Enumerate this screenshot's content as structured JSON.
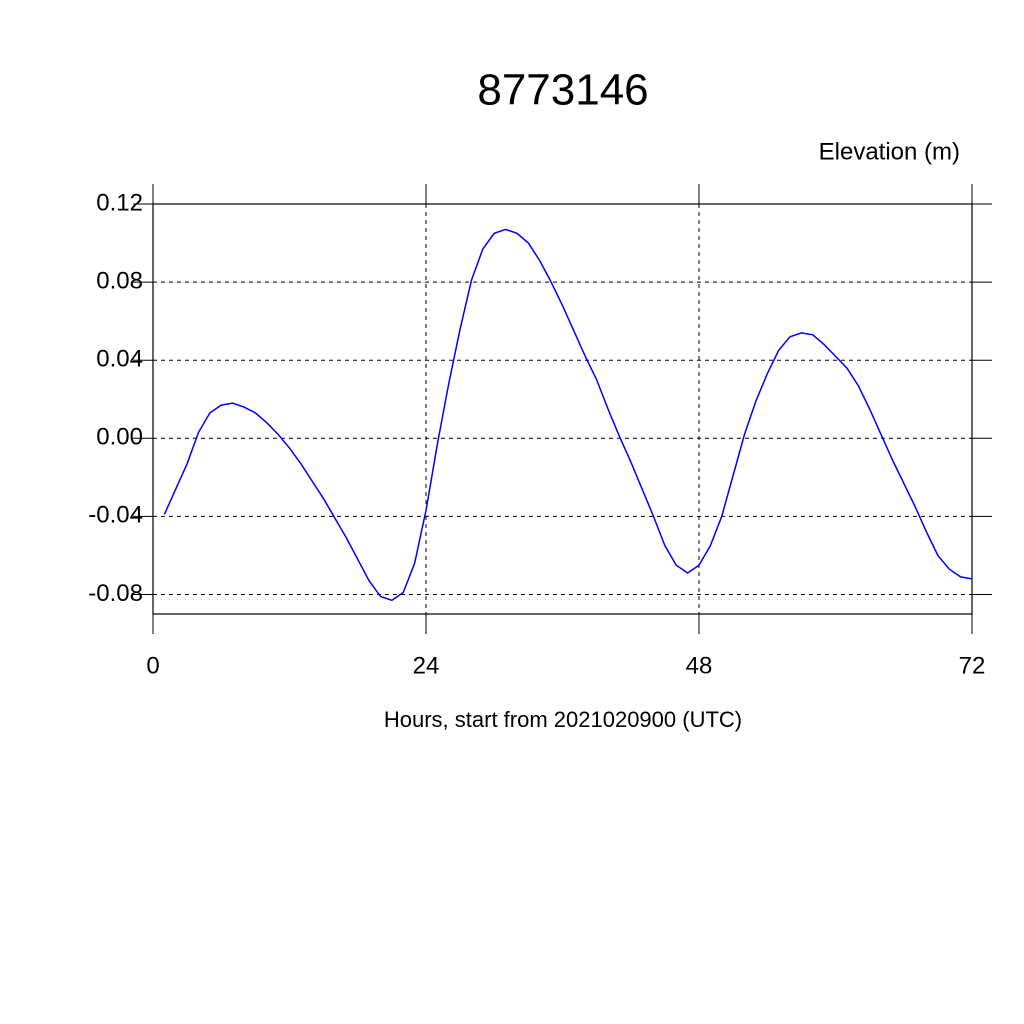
{
  "chart_data": {
    "type": "line",
    "title": "8773146",
    "ylabel": "Elevation (m)",
    "xlabel": "Hours, start from 2021020900 (UTC)",
    "x": [
      1,
      2,
      3,
      4,
      5,
      6,
      7,
      8,
      9,
      10,
      11,
      12,
      13,
      14,
      15,
      16,
      17,
      18,
      19,
      20,
      21,
      22,
      23,
      24,
      25,
      26,
      27,
      28,
      29,
      30,
      31,
      32,
      33,
      34,
      35,
      36,
      37,
      38,
      39,
      40,
      41,
      42,
      43,
      44,
      45,
      46,
      47,
      48,
      49,
      50,
      51,
      52,
      53,
      54,
      55,
      56,
      57,
      58,
      59,
      60,
      61,
      62,
      63,
      64,
      65,
      66,
      67,
      68,
      69,
      70,
      71,
      72
    ],
    "series": [
      {
        "color": "#0000ff",
        "values": [
          -0.039,
          -0.026,
          -0.013,
          0.003,
          0.013,
          0.017,
          0.018,
          0.016,
          0.013,
          0.008,
          0.002,
          -0.005,
          -0.013,
          -0.022,
          -0.031,
          -0.041,
          -0.051,
          -0.062,
          -0.073,
          -0.081,
          -0.083,
          -0.079,
          -0.064,
          -0.037,
          -0.003,
          0.028,
          0.056,
          0.081,
          0.097,
          0.105,
          0.107,
          0.105,
          0.1,
          0.091,
          0.08,
          0.068,
          0.055,
          0.042,
          0.03,
          0.015,
          0.001,
          -0.012,
          -0.026,
          -0.04,
          -0.055,
          -0.065,
          -0.069,
          -0.065,
          -0.055,
          -0.04,
          -0.019,
          0.002,
          0.019,
          0.033,
          0.045,
          0.052,
          0.054,
          0.053,
          0.048,
          0.042,
          0.036,
          0.027,
          0.015,
          0.002,
          -0.011,
          -0.023,
          -0.035,
          -0.048,
          -0.06,
          -0.067,
          -0.071,
          -0.072
        ]
      }
    ],
    "xlim": [
      0,
      72
    ],
    "xticks": [
      0,
      24,
      48,
      72
    ],
    "ylim": [
      -0.09,
      0.12
    ],
    "yticks": [
      0.12,
      0.08,
      0.04,
      {
        "value": 0,
        "label": "0.00"
      },
      -0.04,
      -0.08
    ],
    "grid": true
  }
}
